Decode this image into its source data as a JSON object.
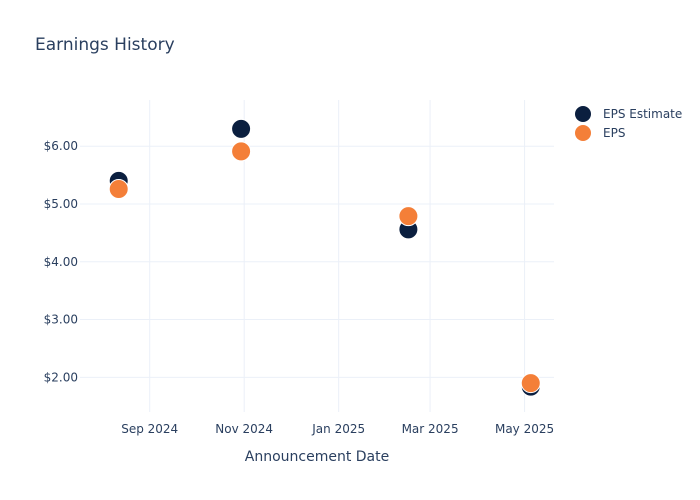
{
  "chart_data": {
    "type": "scatter",
    "title": "Earnings History",
    "xlabel": "Announcement Date",
    "ylabel": "",
    "x_ticks": [
      "Sep 2024",
      "Nov 2024",
      "Jan 2025",
      "Mar 2025",
      "May 2025"
    ],
    "x_tick_dates": [
      "2024-09-01",
      "2024-11-01",
      "2025-01-01",
      "2025-03-01",
      "2025-05-01"
    ],
    "x_range": [
      "2024-07-18",
      "2025-05-20"
    ],
    "y_ticks": [
      {
        "value": 2,
        "label": "$2.00"
      },
      {
        "value": 3,
        "label": "$3.00"
      },
      {
        "value": 4,
        "label": "$4.00"
      },
      {
        "value": 5,
        "label": "$5.00"
      },
      {
        "value": 6,
        "label": "$6.00"
      }
    ],
    "ylim": [
      1.4,
      6.8
    ],
    "grid": true,
    "legend_position": "top-right",
    "series": [
      {
        "name": "EPS Estimate",
        "color": "#0b1f3f",
        "points": [
          {
            "date": "2024-08-12",
            "value": 5.4
          },
          {
            "date": "2024-10-30",
            "value": 6.3
          },
          {
            "date": "2025-02-15",
            "value": 4.56
          },
          {
            "date": "2025-05-05",
            "value": 1.84
          }
        ]
      },
      {
        "name": "EPS",
        "color": "#f47f38",
        "points": [
          {
            "date": "2024-08-12",
            "value": 5.26
          },
          {
            "date": "2024-10-30",
            "value": 5.91
          },
          {
            "date": "2025-02-15",
            "value": 4.79
          },
          {
            "date": "2025-05-05",
            "value": 1.9
          }
        ]
      }
    ]
  }
}
